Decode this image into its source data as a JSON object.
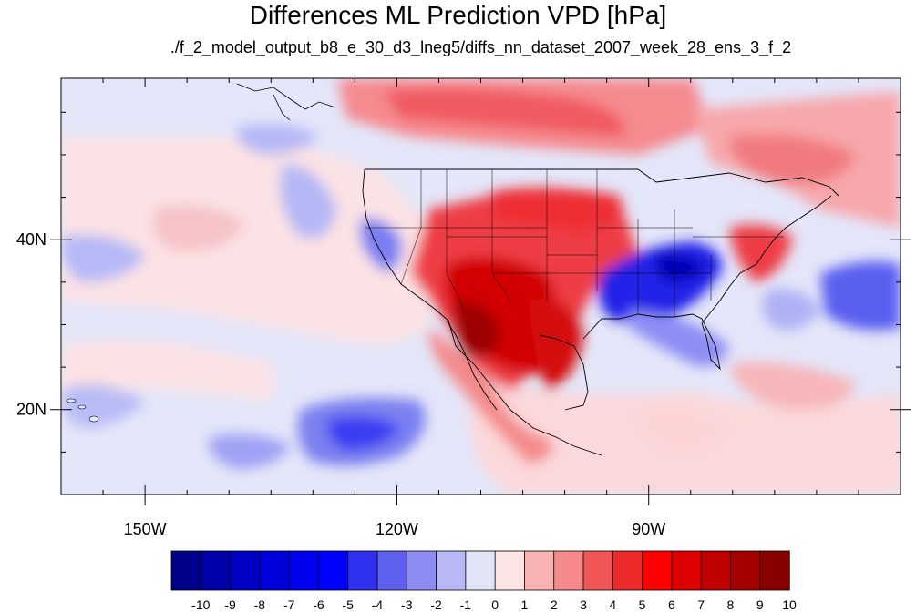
{
  "title": "Differences ML Prediction VPD [hPa]",
  "subtitle": "./f_2_model_output_b8_e_30_d3_lneg5/diffs_nn_dataset_2007_week_28_ens_3_f_2",
  "map": {
    "lon_range": [
      -160,
      -60
    ],
    "lat_range": [
      10,
      59
    ],
    "x_ticks": [
      {
        "lon": -150,
        "label": "150W"
      },
      {
        "lon": -120,
        "label": "120W"
      },
      {
        "lon": -90,
        "label": "90W"
      }
    ],
    "y_ticks": [
      {
        "lat": 40,
        "label": "40N"
      },
      {
        "lat": 20,
        "label": "20N"
      }
    ]
  },
  "colorbar": {
    "labels": [
      "-10",
      "-9",
      "-8",
      "-7",
      "-6",
      "-5",
      "-4",
      "-3",
      "-2",
      "-1",
      "0",
      "1",
      "2",
      "3",
      "4",
      "5",
      "6",
      "7",
      "8",
      "9",
      "10"
    ],
    "colors": [
      "#00008a",
      "#0000a8",
      "#0000c4",
      "#0000dc",
      "#0000f0",
      "#0000ff",
      "#3030f0",
      "#6060f0",
      "#8c8cf2",
      "#b8b8f6",
      "#e2e4f8",
      "#fde4e4",
      "#f8b4b4",
      "#f48a8a",
      "#f05656",
      "#ec2a2a",
      "#ff0000",
      "#dc0000",
      "#c00000",
      "#a40000",
      "#880000"
    ]
  }
}
